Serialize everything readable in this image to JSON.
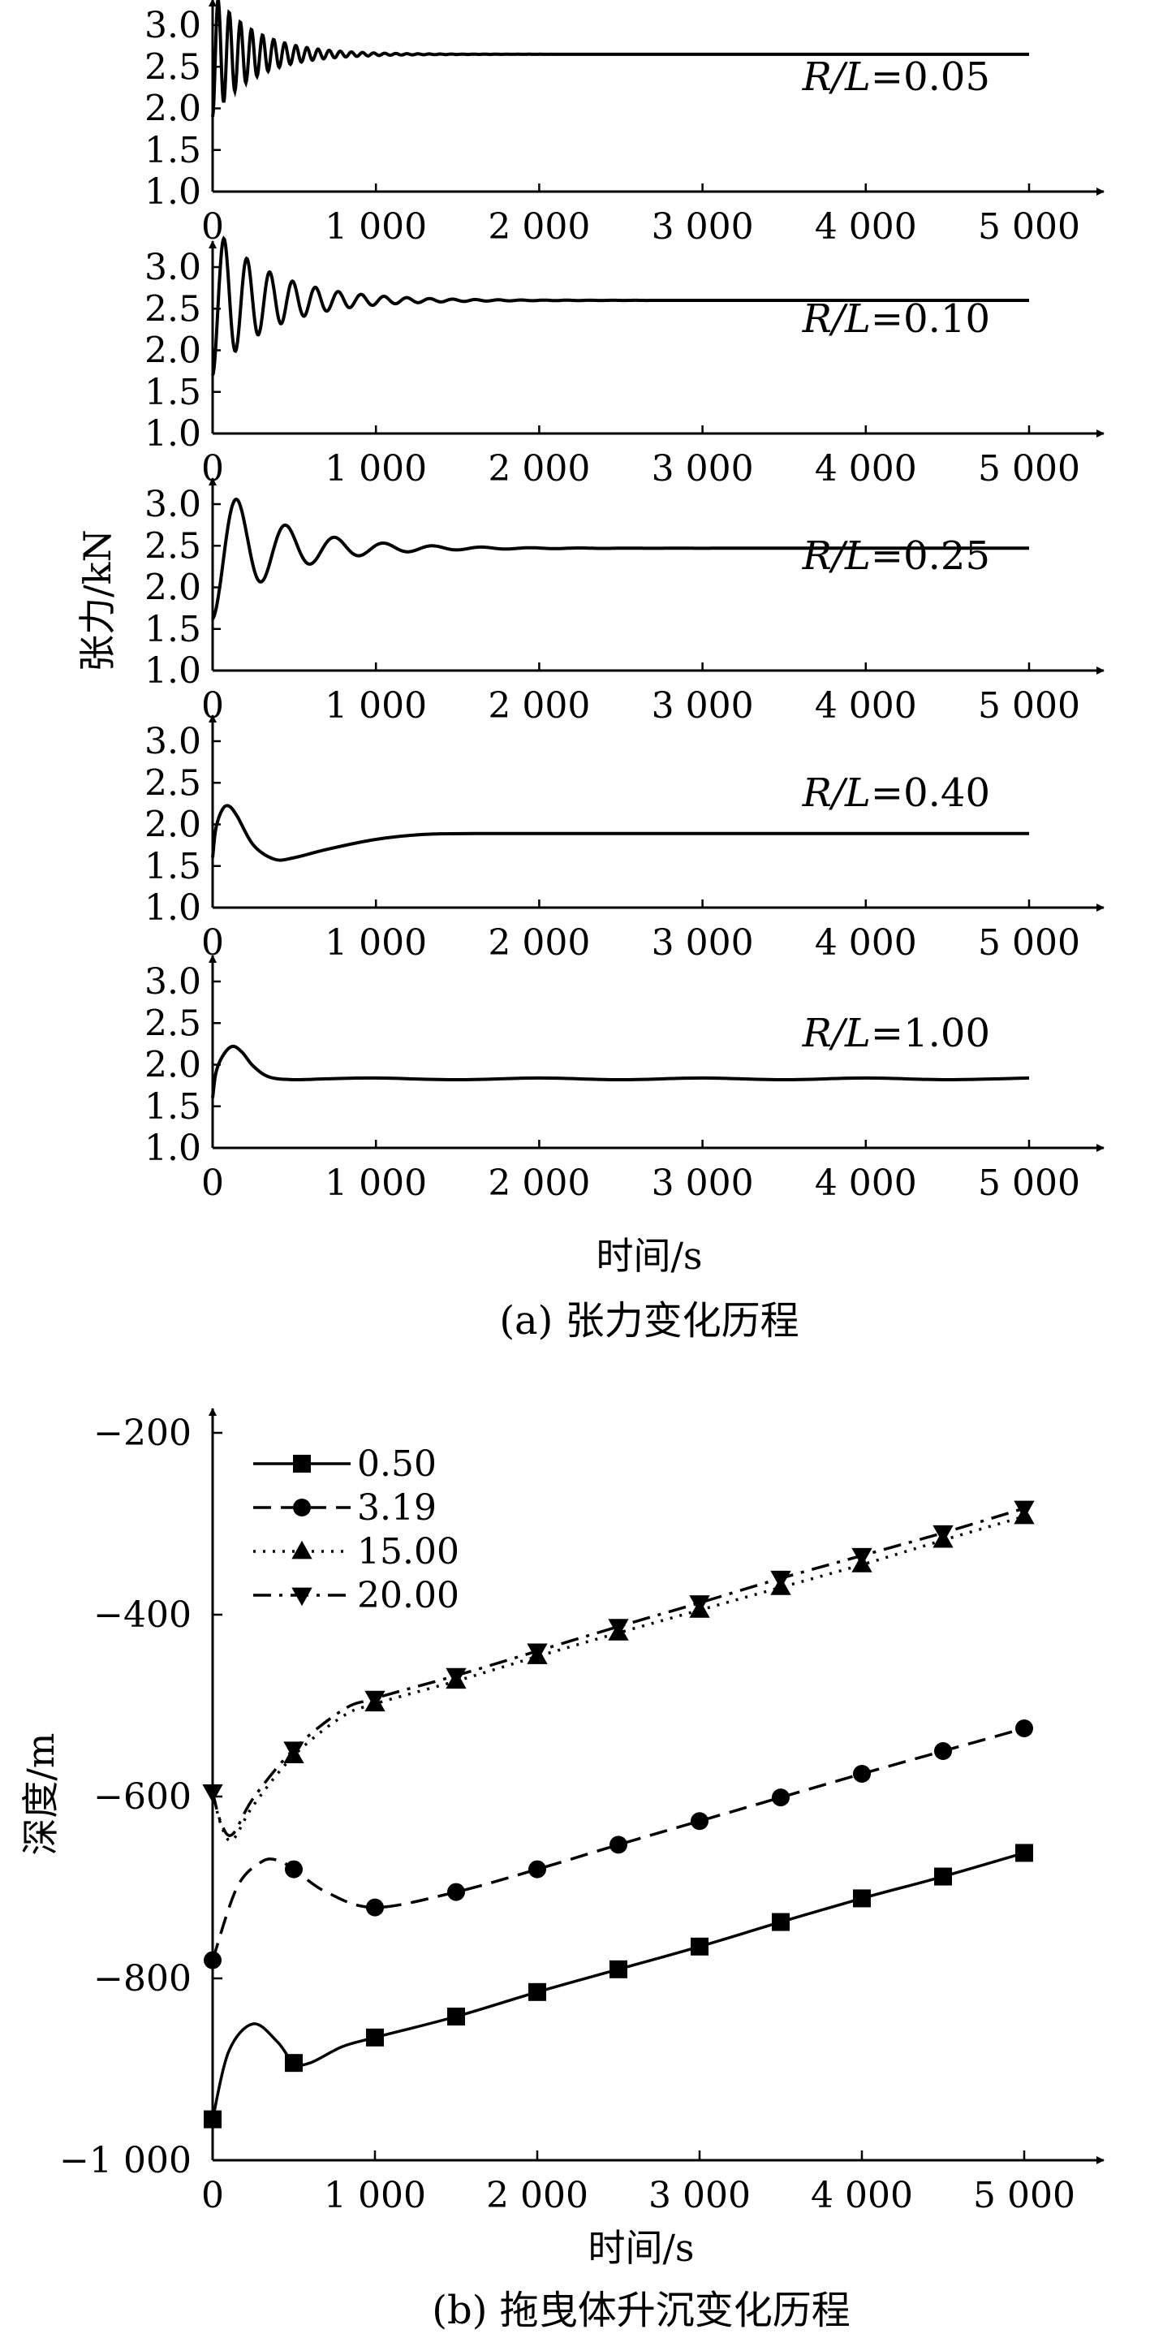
{
  "figure": {
    "caption_a": "(a) 张力变化历程",
    "caption_b": "(b) 拖曳体升沉变化历程"
  },
  "chart_data": [
    {
      "type": "line",
      "panel": "a",
      "ylabel": "张力/kN",
      "xlabel": "时间/s",
      "xlim": [
        0,
        5000
      ],
      "ylim": [
        1.0,
        3.0
      ],
      "x_ticks": [
        "0",
        "1 000",
        "2 000",
        "3 000",
        "4 000",
        "5 000"
      ],
      "y_ticks": [
        "1.0",
        "1.5",
        "2.0",
        "2.5",
        "3.0"
      ],
      "grid": false,
      "series": [
        {
          "label_italic": "R/L",
          "label_value": "=0.05",
          "steady": 2.65,
          "amplitude": 0.75,
          "period": 68,
          "tau": 260,
          "x": [
            0,
            1000,
            2000,
            3000,
            4000,
            5000
          ],
          "y": [
            1.9,
            2.65,
            2.65,
            2.65,
            2.65,
            2.65
          ]
        },
        {
          "label_italic": "R/L",
          "label_value": "=0.10",
          "steady": 2.6,
          "amplitude": 0.9,
          "period": 140,
          "tau": 360,
          "x": [
            0,
            1000,
            2000,
            3000,
            4000,
            5000
          ],
          "y": [
            1.8,
            2.6,
            2.6,
            2.6,
            2.6,
            2.6
          ]
        },
        {
          "label_italic": "R/L",
          "label_value": "=0.25",
          "steady": 2.47,
          "amplitude": 0.85,
          "period": 300,
          "tau": 400,
          "x": [
            0,
            1000,
            2000,
            3000,
            4000,
            5000
          ],
          "y": [
            1.8,
            2.5,
            2.47,
            2.47,
            2.47,
            2.47
          ]
        },
        {
          "label_italic": "R/L",
          "label_value": "=0.40",
          "x": [
            0,
            20,
            60,
            100,
            150,
            250,
            380,
            500,
            700,
            1000,
            1300,
            1600,
            2000,
            3000,
            4000,
            5000
          ],
          "y": [
            1.6,
            1.95,
            2.18,
            2.22,
            2.1,
            1.75,
            1.58,
            1.6,
            1.7,
            1.82,
            1.88,
            1.89,
            1.89,
            1.89,
            1.89,
            1.89
          ]
        },
        {
          "label_italic": "R/L",
          "label_value": "=1.00",
          "x": [
            0,
            20,
            60,
            120,
            180,
            250,
            350,
            500,
            700,
            1000,
            1500,
            2000,
            2500,
            3000,
            3500,
            4000,
            4500,
            5000
          ],
          "y": [
            1.6,
            1.9,
            2.1,
            2.22,
            2.15,
            1.98,
            1.85,
            1.82,
            1.83,
            1.84,
            1.82,
            1.84,
            1.82,
            1.84,
            1.82,
            1.84,
            1.82,
            1.84
          ]
        }
      ]
    },
    {
      "type": "line",
      "panel": "b",
      "xlabel": "时间/s",
      "ylabel": "深度/m",
      "xlim": [
        0,
        5000
      ],
      "ylim": [
        -1000,
        -200
      ],
      "x_ticks": [
        "0",
        "1 000",
        "2 000",
        "3 000",
        "4 000",
        "5 000"
      ],
      "y_ticks": [
        "−1 000",
        "−800",
        "−600",
        "−400",
        "−200"
      ],
      "grid": false,
      "legend_position": "top-left",
      "series": [
        {
          "name": "0.50",
          "marker": "square",
          "dash": "solid",
          "x": [
            0,
            100,
            250,
            400,
            500,
            600,
            800,
            1000,
            1500,
            2000,
            2500,
            3000,
            3500,
            4000,
            4500,
            5000
          ],
          "y": [
            -955,
            -880,
            -850,
            -870,
            -893,
            -893,
            -875,
            -865,
            -842,
            -815,
            -790,
            -765,
            -738,
            -712,
            -688,
            -662
          ],
          "markers_x": [
            0,
            500,
            1000,
            1500,
            2000,
            2500,
            3000,
            3500,
            4000,
            4500,
            5000
          ]
        },
        {
          "name": "3.19",
          "marker": "circle",
          "dash": "dashed",
          "x": [
            0,
            150,
            300,
            400,
            500,
            700,
            1000,
            1500,
            2000,
            2500,
            3000,
            3500,
            4000,
            4500,
            5000
          ],
          "y": [
            -780,
            -700,
            -672,
            -670,
            -680,
            -705,
            -722,
            -705,
            -680,
            -653,
            -627,
            -601,
            -575,
            -550,
            -525
          ],
          "markers_x": [
            0,
            500,
            1000,
            1500,
            2000,
            2500,
            3000,
            3500,
            4000,
            4500,
            5000
          ]
        },
        {
          "name": "15.00",
          "marker": "triangle-up",
          "dash": "dotted",
          "x": [
            0,
            50,
            120,
            250,
            500,
            800,
            1000,
            1500,
            2000,
            2500,
            3000,
            3500,
            4000,
            4500,
            5000
          ],
          "y": [
            -595,
            -630,
            -648,
            -610,
            -555,
            -512,
            -498,
            -473,
            -446,
            -420,
            -395,
            -370,
            -345,
            -318,
            -292
          ],
          "markers_x": [
            500,
            1000,
            1500,
            2000,
            2500,
            3000,
            3500,
            4000,
            4500,
            5000
          ]
        },
        {
          "name": "20.00",
          "marker": "triangle-down",
          "dash": "dashdot",
          "x": [
            0,
            50,
            120,
            250,
            500,
            800,
            1000,
            1500,
            2000,
            2500,
            3000,
            3500,
            4000,
            4500,
            5000
          ],
          "y": [
            -595,
            -628,
            -642,
            -602,
            -548,
            -505,
            -492,
            -467,
            -440,
            -413,
            -387,
            -360,
            -335,
            -310,
            -283
          ],
          "markers_x": [
            0,
            500,
            1000,
            1500,
            2000,
            2500,
            3000,
            3500,
            4000,
            4500,
            5000
          ]
        }
      ]
    }
  ]
}
